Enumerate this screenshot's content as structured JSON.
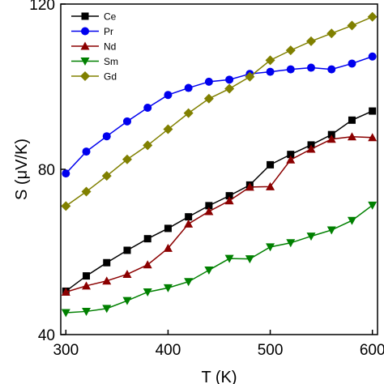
{
  "chart_data": {
    "type": "line",
    "xlabel": "T (K)",
    "ylabel": "S (μV/K)",
    "xlim": [
      295,
      605
    ],
    "ylim": [
      40,
      120
    ],
    "xticks": [
      300,
      400,
      500,
      600
    ],
    "yticks": [
      40,
      80,
      120
    ],
    "xtick_labels": [
      "300",
      "400",
      "500",
      "600"
    ],
    "ytick_labels": [
      "40",
      "80",
      "120"
    ],
    "legend_position": "top-left",
    "x": [
      300,
      320,
      340,
      360,
      380,
      400,
      420,
      440,
      460,
      480,
      500,
      520,
      540,
      560,
      580,
      600
    ],
    "series": [
      {
        "name": "Ce",
        "color": "#000000",
        "marker": "square",
        "values": [
          50.5,
          54.2,
          57.4,
          60.4,
          63.2,
          65.7,
          68.5,
          71.2,
          73.6,
          76.2,
          81.1,
          83.6,
          85.9,
          88.4,
          91.9,
          94.1
        ]
      },
      {
        "name": "Pr",
        "color": "#0000ee",
        "marker": "circle",
        "values": [
          79.0,
          84.3,
          88.0,
          91.6,
          94.9,
          98.0,
          99.7,
          101.2,
          101.7,
          103.1,
          103.6,
          104.2,
          104.6,
          104.2,
          105.6,
          107.3
        ]
      },
      {
        "name": "Nd",
        "color": "#8b0000",
        "marker": "triangle-up",
        "values": [
          50.3,
          51.8,
          53.0,
          54.6,
          56.9,
          60.9,
          66.8,
          69.8,
          72.4,
          75.7,
          75.8,
          82.3,
          84.9,
          87.3,
          87.9,
          87.7
        ]
      },
      {
        "name": "Sm",
        "color": "#008000",
        "marker": "triangle-down",
        "values": [
          45.3,
          45.6,
          46.3,
          48.2,
          50.3,
          51.3,
          52.8,
          55.6,
          58.4,
          58.3,
          61.2,
          62.2,
          63.8,
          65.3,
          67.6,
          71.3
        ]
      },
      {
        "name": "Gd",
        "color": "#808000",
        "marker": "diamond",
        "values": [
          71.1,
          74.6,
          78.4,
          82.4,
          85.8,
          89.7,
          93.6,
          97.1,
          99.5,
          102.4,
          106.4,
          108.8,
          111.0,
          112.9,
          114.8,
          116.9
        ]
      }
    ]
  }
}
